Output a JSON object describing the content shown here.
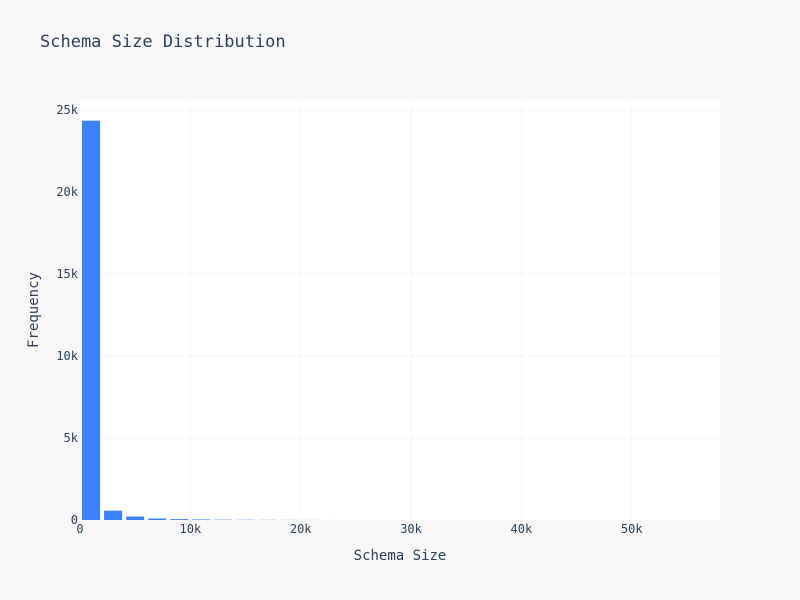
{
  "chart_data": {
    "type": "bar",
    "title": "Schema Size Distribution",
    "xlabel": "Schema Size",
    "ylabel": "Frequency",
    "xlim": [
      0,
      58000
    ],
    "ylim": [
      0,
      25000
    ],
    "x_ticks": [
      0,
      10000,
      20000,
      30000,
      40000,
      50000
    ],
    "x_tick_labels": [
      "0",
      "10k",
      "20k",
      "30k",
      "40k",
      "50k"
    ],
    "y_ticks": [
      0,
      5000,
      10000,
      15000,
      20000,
      25000
    ],
    "y_tick_labels": [
      "0",
      "5k",
      "10k",
      "15k",
      "20k",
      "25k"
    ],
    "grid": true,
    "bin_width": 2000,
    "bins": [
      {
        "start": 0,
        "value": 24350
      },
      {
        "start": 2000,
        "value": 570
      },
      {
        "start": 4000,
        "value": 210
      },
      {
        "start": 6000,
        "value": 90
      },
      {
        "start": 8000,
        "value": 55
      },
      {
        "start": 10000,
        "value": 35
      },
      {
        "start": 12000,
        "value": 22
      },
      {
        "start": 14000,
        "value": 15
      },
      {
        "start": 16000,
        "value": 10
      },
      {
        "start": 18000,
        "value": 8
      },
      {
        "start": 20000,
        "value": 5
      },
      {
        "start": 22000,
        "value": 3
      },
      {
        "start": 24000,
        "value": 2
      },
      {
        "start": 26000,
        "value": 2
      },
      {
        "start": 28000,
        "value": 1
      },
      {
        "start": 30000,
        "value": 1
      },
      {
        "start": 32000,
        "value": 1
      },
      {
        "start": 34000,
        "value": 0
      },
      {
        "start": 36000,
        "value": 1
      },
      {
        "start": 38000,
        "value": 0
      },
      {
        "start": 40000,
        "value": 0
      },
      {
        "start": 42000,
        "value": 1
      },
      {
        "start": 44000,
        "value": 0
      },
      {
        "start": 46000,
        "value": 0
      },
      {
        "start": 48000,
        "value": 0
      },
      {
        "start": 50000,
        "value": 0
      },
      {
        "start": 52000,
        "value": 1
      },
      {
        "start": 54000,
        "value": 0
      },
      {
        "start": 56000,
        "value": 1
      }
    ],
    "colors": {
      "bar": "#3b82f6",
      "plot_bg": "#ffffff",
      "page_bg": "#f8f8f8",
      "grid": "#f3f5f9",
      "text": "#2a3f5f"
    }
  }
}
